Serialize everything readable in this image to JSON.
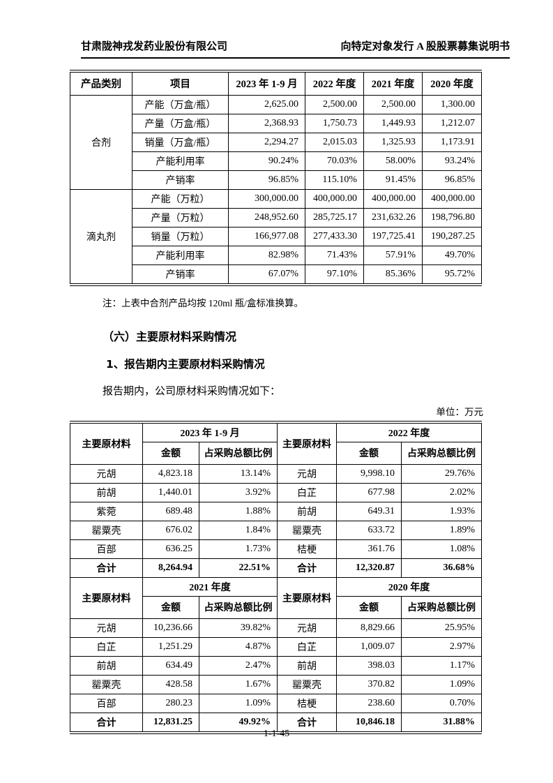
{
  "colors": {
    "text": "#000000",
    "background": "#ffffff",
    "border": "#000000"
  },
  "page_header": {
    "company": "甘肃陇神戎发药业股份有限公司",
    "doc_title": "向特定对象发行 A 股股票募集说明书"
  },
  "capacity_table": {
    "headers": [
      "产品类别",
      "项目",
      "2023 年 1-9 月",
      "2022 年度",
      "2021 年度",
      "2020 年度"
    ],
    "groups": [
      {
        "category": "合剂",
        "rows": [
          {
            "item": "产能（万盒/瓶）",
            "values": [
              "2,625.00",
              "2,500.00",
              "2,500.00",
              "1,300.00"
            ]
          },
          {
            "item": "产量（万盒/瓶）",
            "values": [
              "2,368.93",
              "1,750.73",
              "1,449.93",
              "1,212.07"
            ]
          },
          {
            "item": "销量（万盒/瓶）",
            "values": [
              "2,294.27",
              "2,015.03",
              "1,325.93",
              "1,173.91"
            ]
          },
          {
            "item": "产能利用率",
            "values": [
              "90.24%",
              "70.03%",
              "58.00%",
              "93.24%"
            ]
          },
          {
            "item": "产销率",
            "values": [
              "96.85%",
              "115.10%",
              "91.45%",
              "96.85%"
            ]
          }
        ]
      },
      {
        "category": "滴丸剂",
        "rows": [
          {
            "item": "产能（万粒）",
            "values": [
              "300,000.00",
              "400,000.00",
              "400,000.00",
              "400,000.00"
            ]
          },
          {
            "item": "产量（万粒）",
            "values": [
              "248,952.60",
              "285,725.17",
              "231,632.26",
              "198,796.80"
            ]
          },
          {
            "item": "销量（万粒）",
            "values": [
              "166,977.08",
              "277,433.30",
              "197,725.41",
              "190,287.25"
            ]
          },
          {
            "item": "产能利用率",
            "values": [
              "82.98%",
              "71.43%",
              "57.91%",
              "49.70%"
            ]
          },
          {
            "item": "产销率",
            "values": [
              "67.07%",
              "97.10%",
              "85.36%",
              "95.72%"
            ]
          }
        ]
      }
    ],
    "note": "注：上表中合剂产品均按 120ml 瓶/盒标准换算。"
  },
  "section": {
    "heading": "（六）主要原材料采购情况",
    "subheading": "1、报告期内主要原材料采购情况",
    "paragraph": "报告期内，公司原材料采购情况如下：",
    "unit_label": "单位：万元"
  },
  "materials_table": {
    "col_material": "主要原材料",
    "col_amount": "金额",
    "col_ratio": "占采购总额比例",
    "blocks": [
      {
        "left_period": "2023 年 1-9 月",
        "right_period": "2022 年度",
        "rows": [
          {
            "l_name": "元胡",
            "l_amount": "4,823.18",
            "l_ratio": "13.14%",
            "r_name": "元胡",
            "r_amount": "9,998.10",
            "r_ratio": "29.76%",
            "total": false
          },
          {
            "l_name": "前胡",
            "l_amount": "1,440.01",
            "l_ratio": "3.92%",
            "r_name": "白芷",
            "r_amount": "677.98",
            "r_ratio": "2.02%",
            "total": false
          },
          {
            "l_name": "紫菀",
            "l_amount": "689.48",
            "l_ratio": "1.88%",
            "r_name": "前胡",
            "r_amount": "649.31",
            "r_ratio": "1.93%",
            "total": false
          },
          {
            "l_name": "罂粟壳",
            "l_amount": "676.02",
            "l_ratio": "1.84%",
            "r_name": "罂粟壳",
            "r_amount": "633.72",
            "r_ratio": "1.89%",
            "total": false
          },
          {
            "l_name": "百部",
            "l_amount": "636.25",
            "l_ratio": "1.73%",
            "r_name": "桔梗",
            "r_amount": "361.76",
            "r_ratio": "1.08%",
            "total": false
          },
          {
            "l_name": "合计",
            "l_amount": "8,264.94",
            "l_ratio": "22.51%",
            "r_name": "合计",
            "r_amount": "12,320.87",
            "r_ratio": "36.68%",
            "total": true
          }
        ]
      },
      {
        "left_period": "2021 年度",
        "right_period": "2020 年度",
        "rows": [
          {
            "l_name": "元胡",
            "l_amount": "10,236.66",
            "l_ratio": "39.82%",
            "r_name": "元胡",
            "r_amount": "8,829.66",
            "r_ratio": "25.95%",
            "total": false
          },
          {
            "l_name": "白芷",
            "l_amount": "1,251.29",
            "l_ratio": "4.87%",
            "r_name": "白芷",
            "r_amount": "1,009.07",
            "r_ratio": "2.97%",
            "total": false
          },
          {
            "l_name": "前胡",
            "l_amount": "634.49",
            "l_ratio": "2.47%",
            "r_name": "前胡",
            "r_amount": "398.03",
            "r_ratio": "1.17%",
            "total": false
          },
          {
            "l_name": "罂粟壳",
            "l_amount": "428.58",
            "l_ratio": "1.67%",
            "r_name": "罂粟壳",
            "r_amount": "370.82",
            "r_ratio": "1.09%",
            "total": false
          },
          {
            "l_name": "百部",
            "l_amount": "280.23",
            "l_ratio": "1.09%",
            "r_name": "桔梗",
            "r_amount": "238.60",
            "r_ratio": "0.70%",
            "total": false
          },
          {
            "l_name": "合计",
            "l_amount": "12,831.25",
            "l_ratio": "49.92%",
            "r_name": "合计",
            "r_amount": "10,846.18",
            "r_ratio": "31.88%",
            "total": true
          }
        ]
      }
    ]
  },
  "footer": {
    "page_number": "1-1-45"
  }
}
